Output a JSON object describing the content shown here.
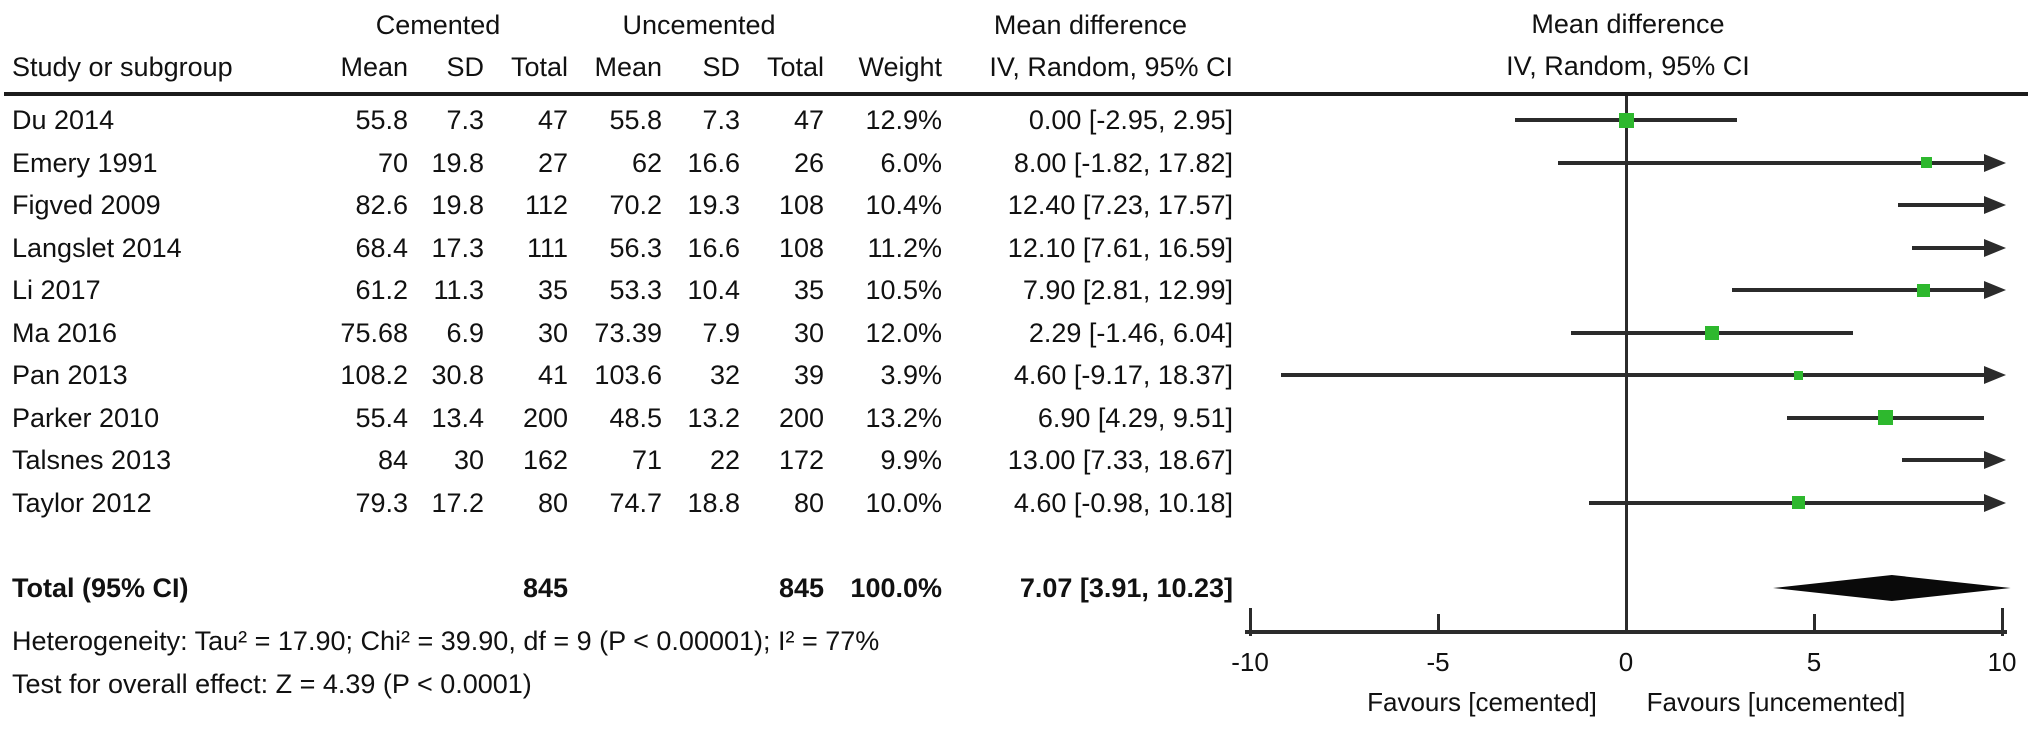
{
  "header": {
    "study_col": "Study or subgroup",
    "group_cemented": "Cemented",
    "group_uncemented": "Uncemented",
    "sub_mean": "Mean",
    "sub_sd": "SD",
    "sub_total": "Total",
    "weight_col": "Weight",
    "md_text_title": "Mean difference",
    "md_text_sub": "IV, Random, 95% CI",
    "md_plot_title": "Mean difference",
    "md_plot_sub": "IV, Random, 95% CI"
  },
  "studies": [
    {
      "name": "Du 2014",
      "c_mean": "55.8",
      "c_sd": "7.3",
      "c_total": "47",
      "u_mean": "55.8",
      "u_sd": "7.3",
      "u_total": "47",
      "weight": "12.9%",
      "ci_text": "0.00 [-2.95, 2.95]",
      "est": 0.0,
      "lo": -2.95,
      "hi": 2.95,
      "weight_pct": 12.9
    },
    {
      "name": "Emery 1991",
      "c_mean": "70",
      "c_sd": "19.8",
      "c_total": "27",
      "u_mean": "62",
      "u_sd": "16.6",
      "u_total": "26",
      "weight": "6.0%",
      "ci_text": "8.00 [-1.82, 17.82]",
      "est": 8.0,
      "lo": -1.82,
      "hi": 17.82,
      "weight_pct": 6.0
    },
    {
      "name": "Figved 2009",
      "c_mean": "82.6",
      "c_sd": "19.8",
      "c_total": "112",
      "u_mean": "70.2",
      "u_sd": "19.3",
      "u_total": "108",
      "weight": "10.4%",
      "ci_text": "12.40 [7.23, 17.57]",
      "est": 12.4,
      "lo": 7.23,
      "hi": 17.57,
      "weight_pct": 10.4
    },
    {
      "name": "Langslet 2014",
      "c_mean": "68.4",
      "c_sd": "17.3",
      "c_total": "111",
      "u_mean": "56.3",
      "u_sd": "16.6",
      "u_total": "108",
      "weight": "11.2%",
      "ci_text": "12.10 [7.61, 16.59]",
      "est": 12.1,
      "lo": 7.61,
      "hi": 16.59,
      "weight_pct": 11.2
    },
    {
      "name": "Li 2017",
      "c_mean": "61.2",
      "c_sd": "11.3",
      "c_total": "35",
      "u_mean": "53.3",
      "u_sd": "10.4",
      "u_total": "35",
      "weight": "10.5%",
      "ci_text": "7.90 [2.81, 12.99]",
      "est": 7.9,
      "lo": 2.81,
      "hi": 12.99,
      "weight_pct": 10.5
    },
    {
      "name": "Ma 2016",
      "c_mean": "75.68",
      "c_sd": "6.9",
      "c_total": "30",
      "u_mean": "73.39",
      "u_sd": "7.9",
      "u_total": "30",
      "weight": "12.0%",
      "ci_text": "2.29 [-1.46, 6.04]",
      "est": 2.29,
      "lo": -1.46,
      "hi": 6.04,
      "weight_pct": 12.0
    },
    {
      "name": "Pan 2013",
      "c_mean": "108.2",
      "c_sd": "30.8",
      "c_total": "41",
      "u_mean": "103.6",
      "u_sd": "32",
      "u_total": "39",
      "weight": "3.9%",
      "ci_text": "4.60 [-9.17, 18.37]",
      "est": 4.6,
      "lo": -9.17,
      "hi": 18.37,
      "weight_pct": 3.9
    },
    {
      "name": "Parker 2010",
      "c_mean": "55.4",
      "c_sd": "13.4",
      "c_total": "200",
      "u_mean": "48.5",
      "u_sd": "13.2",
      "u_total": "200",
      "weight": "13.2%",
      "ci_text": "6.90 [4.29, 9.51]",
      "est": 6.9,
      "lo": 4.29,
      "hi": 9.51,
      "weight_pct": 13.2
    },
    {
      "name": "Talsnes 2013",
      "c_mean": "84",
      "c_sd": "30",
      "c_total": "162",
      "u_mean": "71",
      "u_sd": "22",
      "u_total": "172",
      "weight": "9.9%",
      "ci_text": "13.00 [7.33, 18.67]",
      "est": 13.0,
      "lo": 7.33,
      "hi": 18.67,
      "weight_pct": 9.9
    },
    {
      "name": "Taylor 2012",
      "c_mean": "79.3",
      "c_sd": "17.2",
      "c_total": "80",
      "u_mean": "74.7",
      "u_sd": "18.8",
      "u_total": "80",
      "weight": "10.0%",
      "ci_text": "4.60 [-0.98, 10.18]",
      "est": 4.6,
      "lo": -0.98,
      "hi": 10.18,
      "weight_pct": 10.0
    }
  ],
  "total": {
    "label": "Total (95% CI)",
    "c_total": "845",
    "u_total": "845",
    "weight": "100.0%",
    "ci_text": "7.07 [3.91, 10.23]",
    "est": 7.07,
    "lo": 3.91,
    "hi": 10.23
  },
  "footer": {
    "heterogeneity": "Heterogeneity: Tau² = 17.90; Chi² = 39.90, df = 9 (P < 0.00001); I² = 77%",
    "overall_effect": "Test for overall effect: Z = 4.39 (P < 0.0001)"
  },
  "axis": {
    "min": -10,
    "max": 10,
    "ticks": [
      "-10",
      "-5",
      "0",
      "5",
      "10"
    ],
    "tick_values": [
      -10,
      -5,
      0,
      5,
      10
    ],
    "favours_left": "Favours [cemented]",
    "favours_right": "Favours [uncemented]"
  },
  "colors": {
    "marker_green": "#2eb82e",
    "line_black": "#2b2b2b",
    "diamond_black": "#0a0a0a"
  },
  "chart_data": {
    "type": "scatter",
    "subtype": "forest-plot",
    "title": "Mean difference",
    "effect_model": "IV, Random, 95% CI",
    "xlabel_left": "Favours [cemented]",
    "xlabel_right": "Favours [uncemented]",
    "xlim": [
      -10,
      10
    ],
    "x_ticks": [
      -10,
      -5,
      0,
      5,
      10
    ],
    "grid": false,
    "legend_position": "none",
    "series": [
      {
        "study": "Du 2014",
        "mean_diff": 0.0,
        "ci_low": -2.95,
        "ci_high": 2.95,
        "weight_pct": 12.9
      },
      {
        "study": "Emery 1991",
        "mean_diff": 8.0,
        "ci_low": -1.82,
        "ci_high": 17.82,
        "weight_pct": 6.0
      },
      {
        "study": "Figved 2009",
        "mean_diff": 12.4,
        "ci_low": 7.23,
        "ci_high": 17.57,
        "weight_pct": 10.4
      },
      {
        "study": "Langslet 2014",
        "mean_diff": 12.1,
        "ci_low": 7.61,
        "ci_high": 16.59,
        "weight_pct": 11.2
      },
      {
        "study": "Li 2017",
        "mean_diff": 7.9,
        "ci_low": 2.81,
        "ci_high": 12.99,
        "weight_pct": 10.5
      },
      {
        "study": "Ma 2016",
        "mean_diff": 2.29,
        "ci_low": -1.46,
        "ci_high": 6.04,
        "weight_pct": 12.0
      },
      {
        "study": "Pan 2013",
        "mean_diff": 4.6,
        "ci_low": -9.17,
        "ci_high": 18.37,
        "weight_pct": 3.9
      },
      {
        "study": "Parker 2010",
        "mean_diff": 6.9,
        "ci_low": 4.29,
        "ci_high": 9.51,
        "weight_pct": 13.2
      },
      {
        "study": "Talsnes 2013",
        "mean_diff": 13.0,
        "ci_low": 7.33,
        "ci_high": 18.67,
        "weight_pct": 9.9
      },
      {
        "study": "Taylor 2012",
        "mean_diff": 4.6,
        "ci_low": -0.98,
        "ci_high": 10.18,
        "weight_pct": 10.0
      }
    ],
    "summary": {
      "label": "Total (95% CI)",
      "mean_diff": 7.07,
      "ci_low": 3.91,
      "ci_high": 10.23,
      "cemented_n": 845,
      "uncemented_n": 845,
      "weight_pct": 100.0
    },
    "heterogeneity": {
      "tau2": 17.9,
      "chi2": 39.9,
      "df": 9,
      "p": "< 0.00001",
      "i2_pct": 77
    },
    "overall_effect": {
      "z": 4.39,
      "p": "< 0.0001"
    }
  }
}
